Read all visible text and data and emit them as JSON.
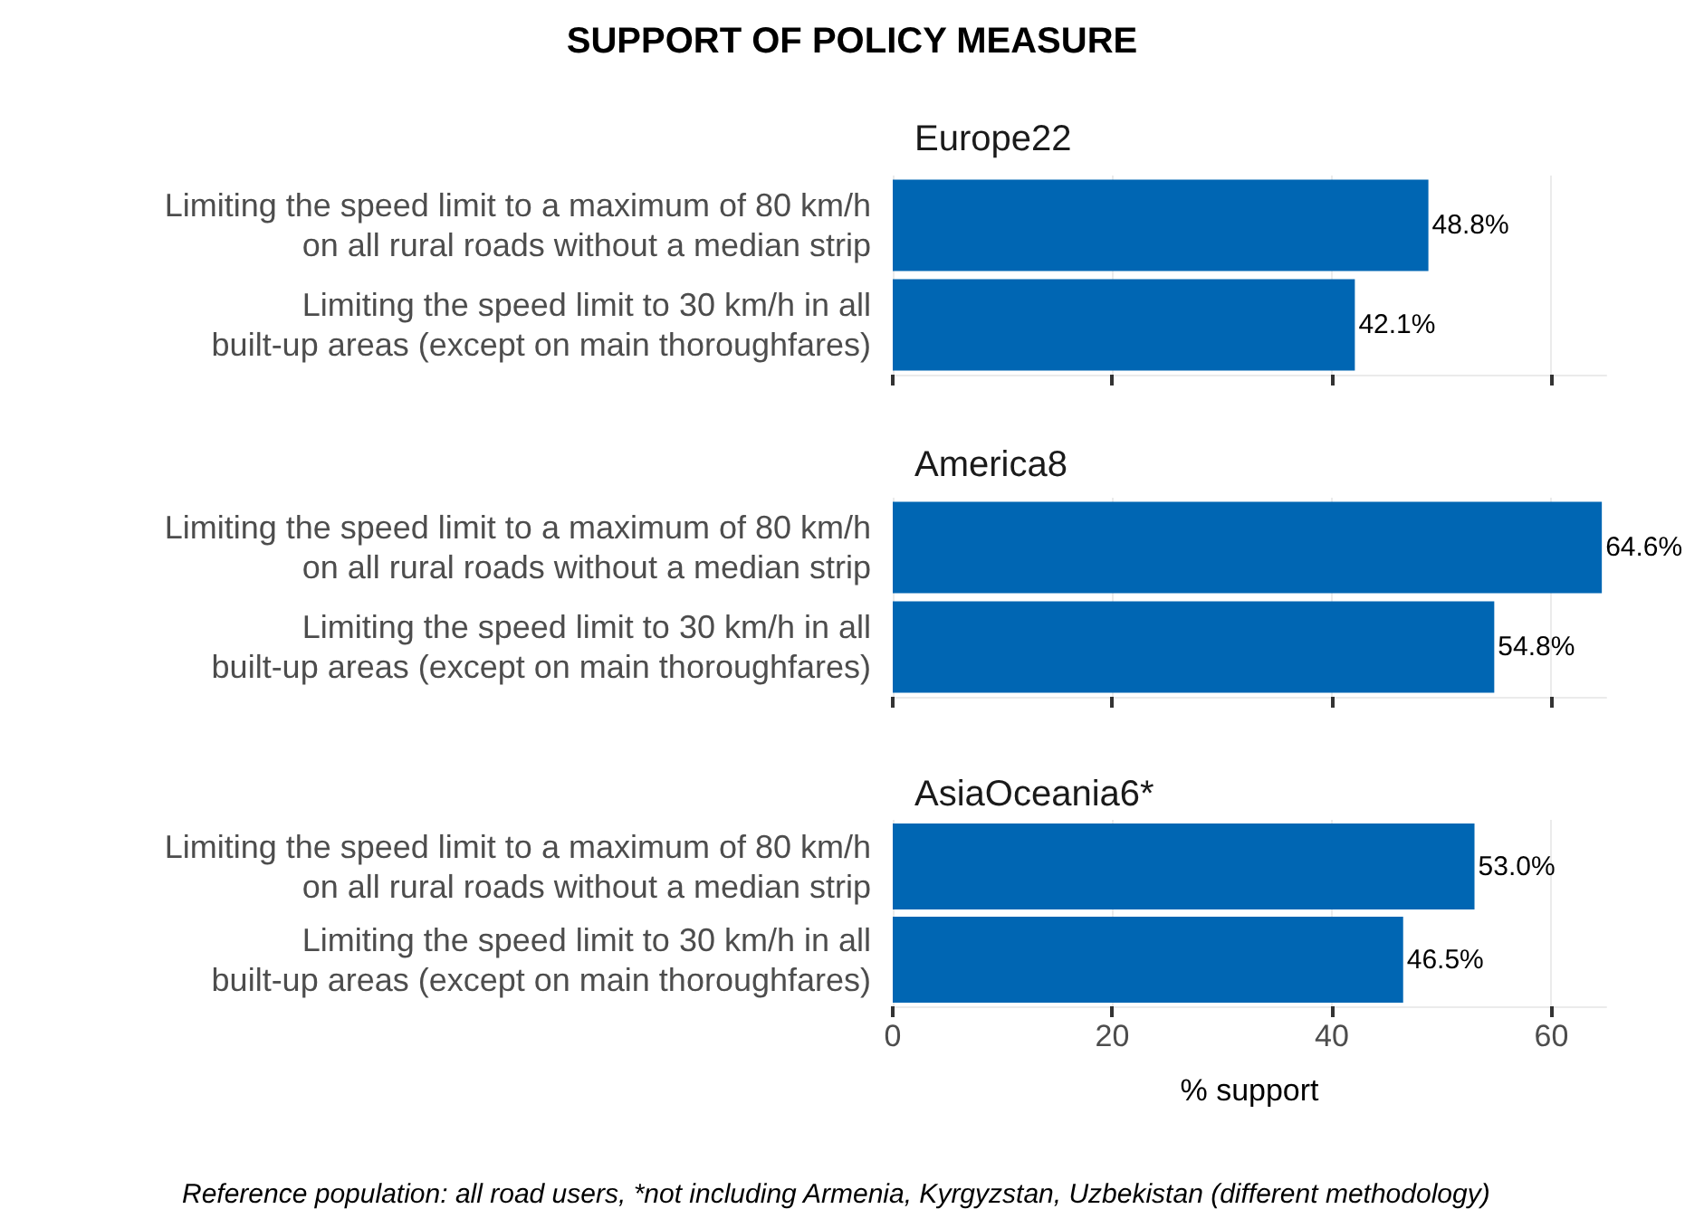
{
  "chart_data": [
    {
      "type": "bar",
      "title": "SUPPORT OF POLICY MEASURE",
      "subtitle": "Europe22",
      "orientation": "horizontal",
      "categories": [
        "Limiting the speed limit to a maximum of 80 km/h\non all rural roads without a median strip",
        "Limiting the speed limit to 30 km/h in all\nbuilt-up areas (except on main thoroughfares)"
      ],
      "values": [
        48.8,
        42.1
      ],
      "value_labels": [
        "48.8%",
        "42.1%"
      ],
      "color": "#0066b3",
      "xlim": [
        0,
        65
      ],
      "xticks": [
        0,
        20,
        40,
        60
      ],
      "grid": "x",
      "tick_labels": "y"
    },
    {
      "type": "bar",
      "subtitle": "America8",
      "orientation": "horizontal",
      "categories": [
        "Limiting the speed limit to a maximum of 80 km/h\non all rural roads without a median strip",
        "Limiting the speed limit to 30 km/h in all\nbuilt-up areas (except on main thoroughfares)"
      ],
      "values": [
        64.6,
        54.8
      ],
      "value_labels": [
        "64.6%",
        "54.8%"
      ],
      "color": "#0066b3",
      "xlim": [
        0,
        65
      ],
      "xticks": [
        0,
        20,
        40,
        60
      ],
      "grid": "x",
      "tick_labels": "y"
    },
    {
      "type": "bar",
      "subtitle": "AsiaOceania6*",
      "orientation": "horizontal",
      "categories": [
        "Limiting the speed limit to a maximum of 80 km/h\non all rural roads without a median strip",
        "Limiting the speed limit to 30 km/h in all\nbuilt-up areas (except on main thoroughfares)"
      ],
      "values": [
        53.0,
        46.5
      ],
      "value_labels": [
        "53.0%",
        "46.5%"
      ],
      "color": "#0066b3",
      "xlim": [
        0,
        65
      ],
      "xticks": [
        0,
        20,
        40,
        60
      ],
      "grid": "x",
      "xlabel": "% support",
      "annotations": [
        "Reference population: all road users, *not including Armenia, Kyrgyzstan, Uzbekistan (different methodology)"
      ]
    }
  ]
}
